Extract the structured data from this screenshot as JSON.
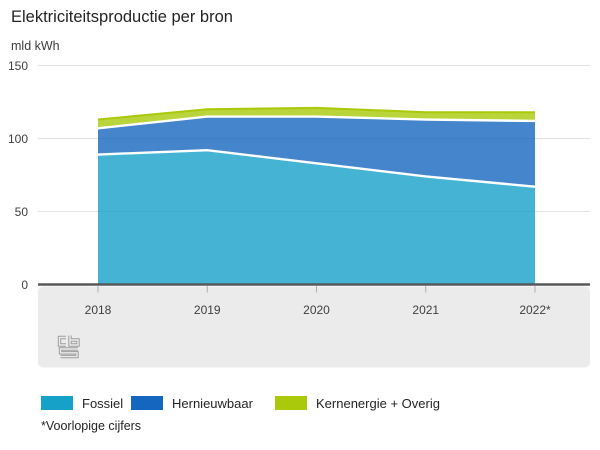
{
  "title": "Elektriciteitsproductie per bron",
  "unit_label": "mld kWh",
  "footnote": "*Voorlopige cijfers",
  "logo_label": "cbs",
  "chart_data": {
    "type": "area",
    "stacked": true,
    "title": "Elektriciteitsproductie per bron",
    "ylabel": "mld kWh",
    "xlabel": "",
    "x": [
      "2018",
      "2019",
      "2020",
      "2021",
      "2022*"
    ],
    "series": [
      {
        "name": "Fossiel",
        "color": "#16a1c9",
        "values": [
          89,
          92,
          83,
          74,
          67
        ]
      },
      {
        "name": "Hernieuwbaar",
        "color": "#1566be",
        "values": [
          18,
          23,
          32,
          39,
          45
        ]
      },
      {
        "name": "Kernenergie + Overig",
        "color": "#a9c90a",
        "values": [
          6,
          5,
          6,
          5,
          6
        ]
      }
    ],
    "ylim": [
      0,
      150
    ],
    "yticks": [
      0,
      50,
      100,
      150
    ],
    "grid": true,
    "legend_position": "bottom"
  }
}
